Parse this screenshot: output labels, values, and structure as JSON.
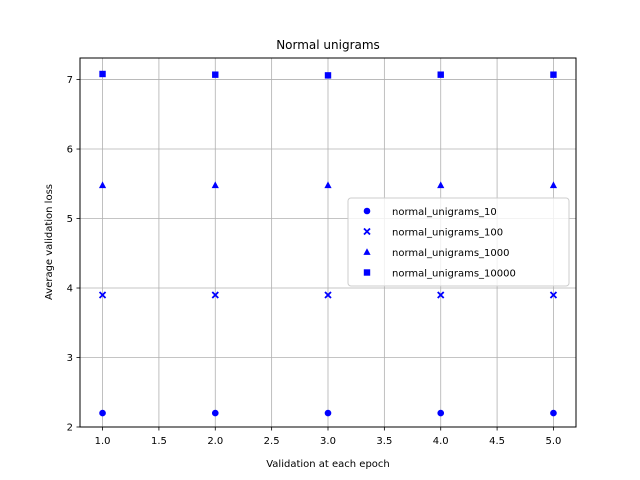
{
  "chart_data": {
    "type": "scatter",
    "title": "Normal unigrams",
    "xlabel": "Validation at each epoch",
    "ylabel": "Average validation loss",
    "xlim": [
      0.8,
      5.2
    ],
    "ylim": [
      2.0,
      7.31
    ],
    "xticks": [
      1.0,
      1.5,
      2.0,
      2.5,
      3.0,
      3.5,
      4.0,
      4.5,
      5.0
    ],
    "xtick_labels": [
      "1.0",
      "1.5",
      "2.0",
      "2.5",
      "3.0",
      "3.5",
      "4.0",
      "4.5",
      "5.0"
    ],
    "yticks": [
      2,
      3,
      4,
      5,
      6,
      7
    ],
    "ytick_labels": [
      "2",
      "3",
      "4",
      "5",
      "6",
      "7"
    ],
    "grid": true,
    "legend_position": "center-right",
    "series": [
      {
        "name": "normal_unigrams_10",
        "marker": "circle",
        "color": "#0000ff",
        "x": [
          1,
          2,
          3,
          4,
          5
        ],
        "y": [
          2.2,
          2.2,
          2.2,
          2.2,
          2.2
        ]
      },
      {
        "name": "normal_unigrams_100",
        "marker": "x",
        "color": "#0000ff",
        "x": [
          1,
          2,
          3,
          4,
          5
        ],
        "y": [
          3.9,
          3.9,
          3.9,
          3.9,
          3.9
        ]
      },
      {
        "name": "normal_unigrams_1000",
        "marker": "triangle",
        "color": "#0000ff",
        "x": [
          1,
          2,
          3,
          4,
          5
        ],
        "y": [
          5.48,
          5.48,
          5.48,
          5.48,
          5.48
        ]
      },
      {
        "name": "normal_unigrams_10000",
        "marker": "square",
        "color": "#0000ff",
        "x": [
          1,
          2,
          3,
          4,
          5
        ],
        "y": [
          7.08,
          7.07,
          7.06,
          7.07,
          7.07
        ]
      }
    ]
  }
}
